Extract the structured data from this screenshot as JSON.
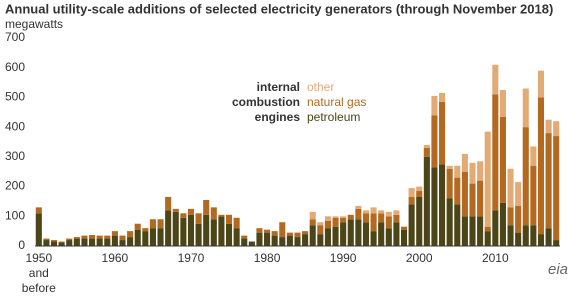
{
  "chart_data": {
    "type": "stacked_bar",
    "title": "Annual utility-scale additions of selected electricity generators (through November 2018)",
    "subtitle": "megawatts",
    "legend_title": "internal combustion engines",
    "logo": "eia",
    "categories": [
      "1950 and before",
      null,
      null,
      null,
      null,
      null,
      null,
      null,
      null,
      null,
      "1960",
      null,
      null,
      null,
      null,
      null,
      null,
      null,
      null,
      null,
      "1970",
      null,
      null,
      null,
      null,
      null,
      null,
      null,
      null,
      null,
      "1980",
      null,
      null,
      null,
      null,
      null,
      null,
      null,
      null,
      null,
      "1990",
      null,
      null,
      null,
      null,
      null,
      null,
      null,
      null,
      null,
      "2000",
      null,
      null,
      null,
      null,
      null,
      null,
      null,
      null,
      null,
      "2010",
      null,
      null,
      null,
      null,
      null,
      null,
      null,
      null
    ],
    "series": [
      {
        "name": "petroleum",
        "color": "#4b4518",
        "values": [
          110,
          20,
          15,
          12,
          20,
          25,
          25,
          25,
          25,
          25,
          35,
          20,
          30,
          55,
          50,
          60,
          60,
          120,
          115,
          95,
          105,
          75,
          105,
          90,
          100,
          75,
          60,
          25,
          15,
          45,
          45,
          35,
          30,
          35,
          30,
          40,
          70,
          40,
          60,
          65,
          80,
          90,
          90,
          80,
          50,
          80,
          60,
          80,
          55,
          140,
          165,
          300,
          265,
          275,
          160,
          140,
          100,
          100,
          100,
          50,
          120,
          145,
          70,
          45,
          70,
          70,
          40,
          60,
          20
        ]
      },
      {
        "name": "natural gas",
        "color": "#b3691f",
        "values": [
          20,
          5,
          5,
          3,
          5,
          5,
          10,
          12,
          10,
          10,
          15,
          15,
          20,
          20,
          10,
          30,
          30,
          45,
          10,
          15,
          20,
          35,
          50,
          40,
          5,
          30,
          35,
          10,
          0,
          15,
          10,
          15,
          50,
          10,
          15,
          10,
          20,
          30,
          25,
          30,
          15,
          15,
          35,
          30,
          60,
          30,
          40,
          25,
          10,
          25,
          20,
          30,
          175,
          210,
          100,
          90,
          150,
          110,
          120,
          15,
          390,
          290,
          60,
          90,
          330,
          200,
          460,
          320,
          350
        ]
      },
      {
        "name": "other",
        "color": "#e2ab76",
        "values": [
          0,
          0,
          0,
          0,
          0,
          0,
          0,
          0,
          0,
          0,
          0,
          0,
          0,
          0,
          0,
          0,
          0,
          0,
          0,
          0,
          0,
          0,
          0,
          0,
          0,
          0,
          0,
          0,
          0,
          0,
          0,
          0,
          0,
          0,
          0,
          0,
          25,
          10,
          15,
          5,
          5,
          0,
          10,
          10,
          20,
          10,
          15,
          15,
          0,
          30,
          15,
          10,
          65,
          30,
          10,
          40,
          60,
          70,
          65,
          320,
          100,
          90,
          130,
          80,
          130,
          65,
          90,
          45,
          50
        ]
      }
    ],
    "ylim": [
      0,
      700
    ],
    "yticks": [
      0,
      100,
      200,
      300,
      400,
      500,
      600,
      700
    ],
    "grid": false
  }
}
